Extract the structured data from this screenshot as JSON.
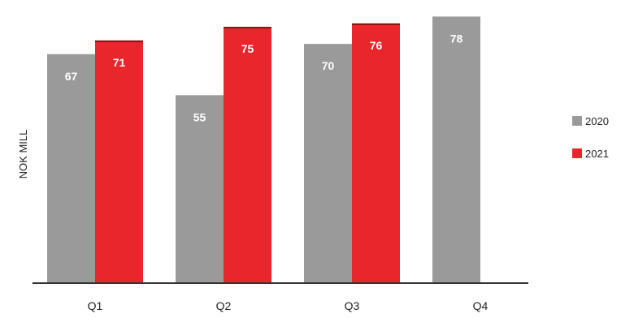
{
  "chart_data": {
    "type": "bar",
    "categories": [
      "Q1",
      "Q2",
      "Q3",
      "Q4"
    ],
    "series": [
      {
        "name": "2020",
        "values": [
          67,
          55,
          70,
          78
        ],
        "color": "#9a9a9a"
      },
      {
        "name": "2021",
        "values": [
          71,
          75,
          76,
          null
        ],
        "color": "#e8262c"
      }
    ],
    "title": "",
    "xlabel": "",
    "ylabel": "NOK MILL",
    "ylim": [
      0,
      80
    ],
    "grid": false,
    "legend_position": "right",
    "data_labels": true
  }
}
